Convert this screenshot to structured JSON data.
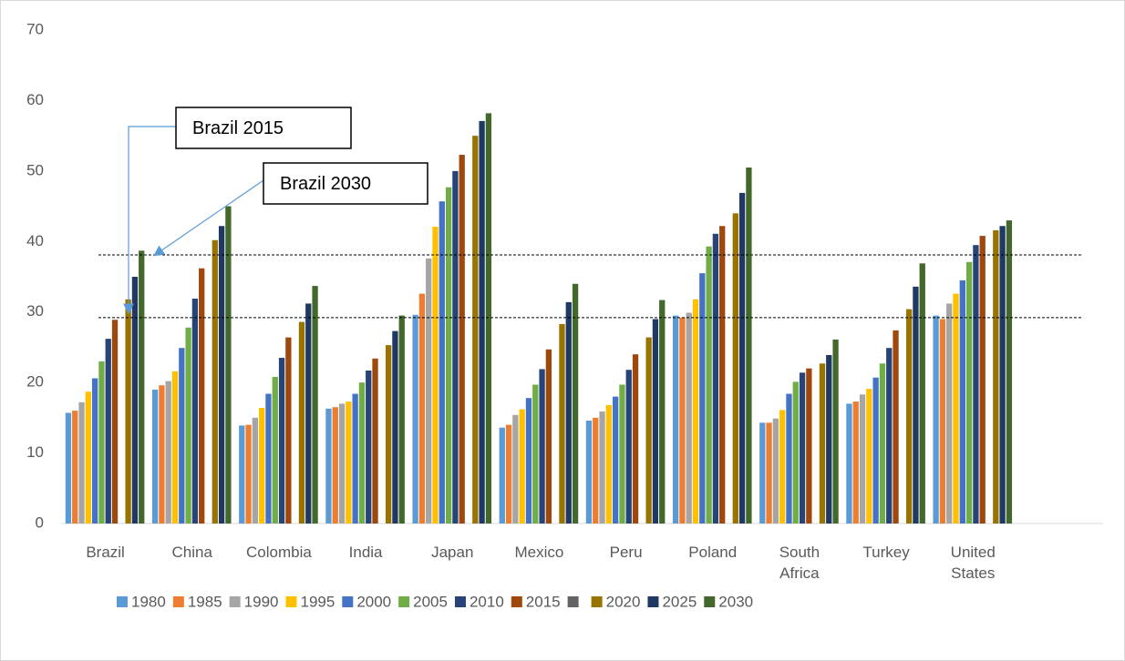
{
  "chart_data": {
    "type": "bar",
    "categories": [
      "Brazil",
      "China",
      "Colombia",
      "India",
      "Japan",
      "Mexico",
      "Peru",
      "Poland",
      "South Africa",
      "Turkey",
      "United States",
      null
    ],
    "series": [
      {
        "name": "1980",
        "color": "#5b9bd5",
        "values": [
          15.7,
          19,
          13.9,
          16.3,
          29.6,
          13.6,
          14.6,
          29.5,
          14.3,
          17,
          29.5,
          null
        ]
      },
      {
        "name": "1985",
        "color": "#ed7d31",
        "values": [
          16,
          19.6,
          14,
          16.5,
          32.6,
          14,
          15,
          29.2,
          14.3,
          17.3,
          29,
          null
        ]
      },
      {
        "name": "1990",
        "color": "#a5a5a5",
        "values": [
          17.2,
          20.2,
          15,
          17,
          37.6,
          15.4,
          15.9,
          29.9,
          14.9,
          18.3,
          31.2,
          null
        ]
      },
      {
        "name": "1995",
        "color": "#ffc000",
        "values": [
          18.7,
          21.6,
          16.4,
          17.3,
          42.1,
          16.2,
          16.8,
          31.8,
          16.1,
          19.1,
          32.6,
          null
        ]
      },
      {
        "name": "2000",
        "color": "#4472c4",
        "values": [
          20.6,
          24.9,
          18.4,
          18.4,
          45.7,
          17.8,
          18,
          35.5,
          18.4,
          20.7,
          34.5,
          null
        ]
      },
      {
        "name": "2005",
        "color": "#70ad47",
        "values": [
          23,
          27.8,
          20.8,
          20,
          47.7,
          19.7,
          19.7,
          39.3,
          20.1,
          22.7,
          37.1,
          null
        ]
      },
      {
        "name": "2010",
        "color": "#264478",
        "values": [
          26.2,
          31.9,
          23.5,
          21.7,
          50,
          21.9,
          21.8,
          41.1,
          21.4,
          24.9,
          39.5,
          null
        ]
      },
      {
        "name": "2015",
        "color": "#9e480e",
        "values": [
          28.9,
          36.2,
          26.4,
          23.4,
          52.3,
          24.7,
          24,
          42.2,
          22,
          27.4,
          40.8,
          null
        ]
      },
      {
        "name": null,
        "color": "#636363",
        "values": [
          null,
          null,
          null,
          null,
          null,
          null,
          null,
          null,
          null,
          null,
          null,
          null
        ]
      },
      {
        "name": "2020",
        "color": "#997300",
        "values": [
          31.8,
          40.2,
          28.6,
          25.3,
          55,
          28.3,
          26.4,
          44,
          22.7,
          30.4,
          41.6,
          null
        ]
      },
      {
        "name": "2025",
        "color": "#1f3864",
        "values": [
          35,
          42.2,
          31.2,
          27.3,
          57.1,
          31.4,
          29,
          46.9,
          23.9,
          33.6,
          42.2,
          null
        ]
      },
      {
        "name": "2030",
        "color": "#43682b",
        "values": [
          38.7,
          45,
          33.7,
          29.5,
          58.2,
          34,
          31.7,
          50.5,
          26.1,
          36.9,
          43,
          null
        ]
      }
    ],
    "ylim": [
      0,
      70
    ],
    "yticks": [
      0,
      10,
      20,
      30,
      40,
      50,
      60,
      70
    ],
    "grid": false,
    "reference_lines": [
      29.2,
      38.1
    ],
    "annotations": [
      "Brazil 2015",
      "Brazil 2030"
    ],
    "legend": "bottom"
  }
}
